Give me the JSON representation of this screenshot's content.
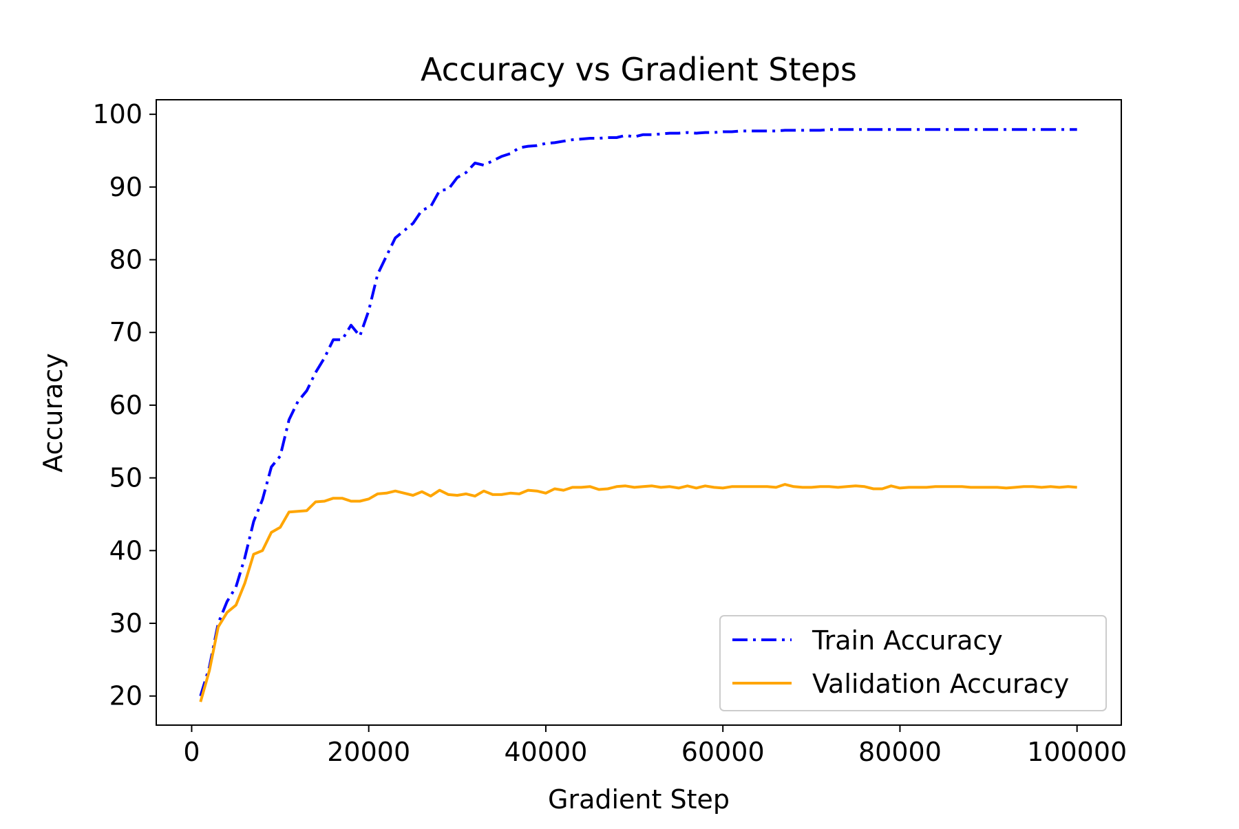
{
  "chart_data": {
    "type": "line",
    "title": "Accuracy vs Gradient Steps",
    "xlabel": "Gradient Step",
    "ylabel": "Accuracy",
    "xlim": [
      -4000,
      105000
    ],
    "ylim": [
      16,
      102
    ],
    "xticks": [
      0,
      20000,
      40000,
      60000,
      80000,
      100000
    ],
    "yticks": [
      20,
      30,
      40,
      50,
      60,
      70,
      80,
      90,
      100
    ],
    "grid": false,
    "legend": {
      "position": "lower-right"
    },
    "x": [
      1000,
      2000,
      3000,
      4000,
      5000,
      6000,
      7000,
      8000,
      9000,
      10000,
      11000,
      12000,
      13000,
      14000,
      15000,
      16000,
      17000,
      18000,
      19000,
      20000,
      21000,
      22000,
      23000,
      24000,
      25000,
      26000,
      27000,
      28000,
      29000,
      30000,
      31000,
      32000,
      33000,
      34000,
      35000,
      36000,
      37000,
      38000,
      39000,
      40000,
      41000,
      42000,
      43000,
      44000,
      45000,
      46000,
      47000,
      48000,
      49000,
      50000,
      51000,
      52000,
      53000,
      54000,
      55000,
      56000,
      57000,
      58000,
      59000,
      60000,
      61000,
      62000,
      63000,
      64000,
      65000,
      66000,
      67000,
      68000,
      69000,
      70000,
      71000,
      72000,
      73000,
      74000,
      75000,
      76000,
      77000,
      78000,
      79000,
      80000,
      81000,
      82000,
      83000,
      84000,
      85000,
      86000,
      87000,
      88000,
      89000,
      90000,
      91000,
      92000,
      93000,
      94000,
      95000,
      96000,
      97000,
      98000,
      99000,
      100000
    ],
    "series": [
      {
        "name": "Train Accuracy",
        "color": "#0000ff",
        "style": "dashdot",
        "values": [
          20,
          24,
          30,
          33,
          35,
          39,
          44,
          47,
          51.5,
          53,
          58,
          60.5,
          62,
          64.5,
          66.5,
          69,
          69,
          71,
          69.5,
          73,
          78,
          80.5,
          83,
          84,
          85,
          86.8,
          87.3,
          89.5,
          89.7,
          91.3,
          92,
          93.3,
          93,
          93.6,
          94.2,
          94.6,
          95.4,
          95.6,
          95.7,
          96,
          96.1,
          96.3,
          96.5,
          96.6,
          96.7,
          96.7,
          96.8,
          96.8,
          97.1,
          96.9,
          97.2,
          97.2,
          97.3,
          97.4,
          97.4,
          97.5,
          97.4,
          97.5,
          97.5,
          97.6,
          97.6,
          97.7,
          97.7,
          97.7,
          97.7,
          97.7,
          97.8,
          97.8,
          97.8,
          97.8,
          97.8,
          97.9,
          97.9,
          97.9,
          97.9,
          97.9,
          97.9,
          97.9,
          97.9,
          97.9,
          97.9,
          97.9,
          97.9,
          97.9,
          97.9,
          97.9,
          97.9,
          97.9,
          97.9,
          97.9,
          97.9,
          97.9,
          97.9,
          97.9,
          97.9,
          97.9,
          97.9,
          97.9,
          97.9,
          97.9
        ]
      },
      {
        "name": "Validation Accuracy",
        "color": "#ffa500",
        "style": "solid",
        "values": [
          19.2,
          23.5,
          29.5,
          31.5,
          32.5,
          35.5,
          39.5,
          40,
          42.5,
          43.2,
          45.3,
          45.4,
          45.5,
          46.7,
          46.8,
          47.2,
          47.2,
          46.8,
          46.8,
          47.1,
          47.8,
          47.9,
          48.2,
          47.9,
          47.6,
          48.1,
          47.5,
          48.3,
          47.7,
          47.6,
          47.8,
          47.5,
          48.2,
          47.7,
          47.7,
          47.9,
          47.8,
          48.3,
          48.2,
          47.9,
          48.5,
          48.3,
          48.7,
          48.7,
          48.8,
          48.4,
          48.5,
          48.8,
          48.9,
          48.7,
          48.8,
          48.9,
          48.7,
          48.8,
          48.6,
          48.9,
          48.6,
          48.9,
          48.7,
          48.6,
          48.8,
          48.8,
          48.8,
          48.8,
          48.8,
          48.7,
          49.1,
          48.8,
          48.7,
          48.7,
          48.8,
          48.8,
          48.7,
          48.8,
          48.9,
          48.8,
          48.5,
          48.5,
          48.9,
          48.6,
          48.7,
          48.7,
          48.7,
          48.8,
          48.8,
          48.8,
          48.8,
          48.7,
          48.7,
          48.7,
          48.7,
          48.6,
          48.7,
          48.8,
          48.8,
          48.7,
          48.8,
          48.7,
          48.8,
          48.7
        ]
      }
    ]
  }
}
